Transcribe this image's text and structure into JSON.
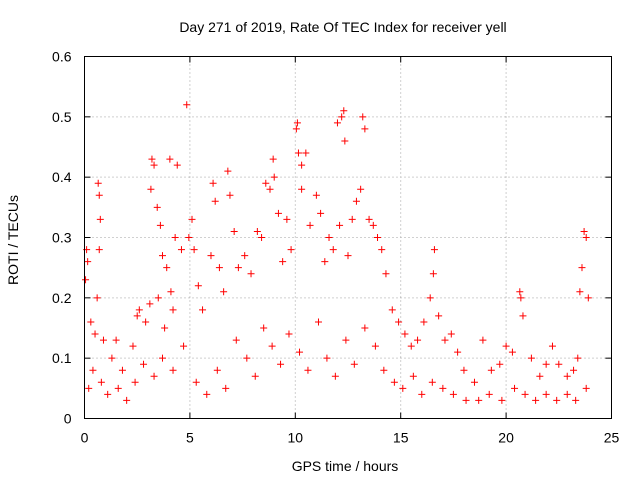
{
  "chart_data": {
    "type": "scatter",
    "title": "Day 271 of 2019, Rate Of TEC Index for receiver yell",
    "xlabel": "GPS time / hours",
    "ylabel": "ROTI / TECUs",
    "xlim": [
      0,
      25
    ],
    "ylim": [
      0,
      0.6
    ],
    "xticks": [
      0,
      5,
      10,
      15,
      20,
      25
    ],
    "yticks": [
      0,
      0.1,
      0.2,
      0.3,
      0.4,
      0.5,
      0.6
    ],
    "xtick_labels": [
      "0",
      "5",
      "10",
      "15",
      "20",
      "25"
    ],
    "ytick_labels": [
      "0",
      "0.1",
      "0.2",
      "0.3",
      "0.4",
      "0.5",
      "0.6"
    ],
    "grid": true,
    "marker": "+",
    "color": "#ff0000",
    "series": [
      {
        "name": "ROTI",
        "points": [
          [
            0.05,
            0.23
          ],
          [
            0.1,
            0.28
          ],
          [
            0.15,
            0.26
          ],
          [
            0.3,
            0.16
          ],
          [
            0.5,
            0.14
          ],
          [
            0.65,
            0.39
          ],
          [
            0.7,
            0.37
          ],
          [
            0.75,
            0.33
          ],
          [
            0.7,
            0.28
          ],
          [
            0.6,
            0.2
          ],
          [
            0.9,
            0.13
          ],
          [
            1.3,
            0.1
          ],
          [
            1.5,
            0.13
          ],
          [
            1.8,
            0.08
          ],
          [
            2.3,
            0.12
          ],
          [
            2.5,
            0.17
          ],
          [
            2.6,
            0.18
          ],
          [
            2.9,
            0.16
          ],
          [
            3.1,
            0.19
          ],
          [
            3.2,
            0.43
          ],
          [
            3.3,
            0.42
          ],
          [
            3.15,
            0.38
          ],
          [
            3.5,
            0.2
          ],
          [
            3.8,
            0.15
          ],
          [
            4.05,
            0.43
          ],
          [
            4.2,
            0.18
          ],
          [
            4.4,
            0.42
          ],
          [
            4.6,
            0.28
          ],
          [
            3.45,
            0.35
          ],
          [
            3.6,
            0.32
          ],
          [
            3.7,
            0.27
          ],
          [
            3.9,
            0.25
          ],
          [
            4.1,
            0.21
          ],
          [
            4.3,
            0.3
          ],
          [
            4.85,
            0.52
          ],
          [
            4.95,
            0.3
          ],
          [
            5.1,
            0.33
          ],
          [
            5.2,
            0.28
          ],
          [
            5.4,
            0.22
          ],
          [
            5.6,
            0.18
          ],
          [
            6.0,
            0.27
          ],
          [
            6.1,
            0.39
          ],
          [
            6.2,
            0.36
          ],
          [
            6.4,
            0.25
          ],
          [
            6.6,
            0.21
          ],
          [
            6.8,
            0.41
          ],
          [
            6.9,
            0.37
          ],
          [
            7.1,
            0.31
          ],
          [
            7.3,
            0.25
          ],
          [
            7.6,
            0.27
          ],
          [
            7.9,
            0.24
          ],
          [
            8.2,
            0.31
          ],
          [
            8.4,
            0.3
          ],
          [
            8.6,
            0.39
          ],
          [
            8.8,
            0.38
          ],
          [
            8.95,
            0.43
          ],
          [
            9.0,
            0.4
          ],
          [
            9.2,
            0.34
          ],
          [
            9.4,
            0.26
          ],
          [
            9.6,
            0.33
          ],
          [
            9.8,
            0.28
          ],
          [
            10.05,
            0.48
          ],
          [
            10.1,
            0.49
          ],
          [
            10.15,
            0.44
          ],
          [
            10.3,
            0.42
          ],
          [
            10.5,
            0.44
          ],
          [
            10.3,
            0.38
          ],
          [
            10.7,
            0.32
          ],
          [
            11.0,
            0.37
          ],
          [
            11.2,
            0.34
          ],
          [
            11.4,
            0.26
          ],
          [
            11.6,
            0.3
          ],
          [
            11.8,
            0.28
          ],
          [
            12.0,
            0.49
          ],
          [
            12.2,
            0.5
          ],
          [
            12.3,
            0.51
          ],
          [
            12.35,
            0.46
          ],
          [
            12.1,
            0.32
          ],
          [
            12.5,
            0.27
          ],
          [
            12.7,
            0.33
          ],
          [
            12.9,
            0.36
          ],
          [
            13.1,
            0.38
          ],
          [
            13.2,
            0.5
          ],
          [
            13.3,
            0.48
          ],
          [
            13.5,
            0.33
          ],
          [
            13.7,
            0.32
          ],
          [
            13.9,
            0.3
          ],
          [
            14.1,
            0.28
          ],
          [
            14.3,
            0.24
          ],
          [
            14.6,
            0.18
          ],
          [
            14.9,
            0.16
          ],
          [
            15.2,
            0.14
          ],
          [
            15.5,
            0.12
          ],
          [
            15.8,
            0.13
          ],
          [
            16.1,
            0.16
          ],
          [
            16.4,
            0.2
          ],
          [
            16.55,
            0.24
          ],
          [
            16.6,
            0.28
          ],
          [
            16.8,
            0.17
          ],
          [
            17.1,
            0.13
          ],
          [
            17.4,
            0.14
          ],
          [
            17.7,
            0.11
          ],
          [
            18.0,
            0.08
          ],
          [
            18.5,
            0.06
          ],
          [
            18.9,
            0.13
          ],
          [
            19.3,
            0.08
          ],
          [
            19.7,
            0.09
          ],
          [
            20.0,
            0.12
          ],
          [
            20.3,
            0.11
          ],
          [
            20.65,
            0.21
          ],
          [
            20.7,
            0.2
          ],
          [
            20.8,
            0.17
          ],
          [
            21.2,
            0.1
          ],
          [
            21.6,
            0.07
          ],
          [
            21.9,
            0.09
          ],
          [
            22.2,
            0.12
          ],
          [
            22.5,
            0.09
          ],
          [
            22.9,
            0.07
          ],
          [
            23.2,
            0.08
          ],
          [
            23.4,
            0.1
          ],
          [
            23.5,
            0.21
          ],
          [
            23.6,
            0.25
          ],
          [
            23.7,
            0.31
          ],
          [
            23.8,
            0.3
          ],
          [
            23.9,
            0.2
          ],
          [
            0.2,
            0.05
          ],
          [
            0.4,
            0.08
          ],
          [
            0.8,
            0.06
          ],
          [
            1.1,
            0.04
          ],
          [
            1.6,
            0.05
          ],
          [
            2.0,
            0.03
          ],
          [
            2.4,
            0.06
          ],
          [
            2.8,
            0.09
          ],
          [
            3.3,
            0.07
          ],
          [
            3.7,
            0.1
          ],
          [
            4.2,
            0.08
          ],
          [
            4.7,
            0.12
          ],
          [
            5.3,
            0.06
          ],
          [
            5.8,
            0.04
          ],
          [
            6.3,
            0.08
          ],
          [
            6.7,
            0.05
          ],
          [
            7.2,
            0.13
          ],
          [
            7.7,
            0.1
          ],
          [
            8.1,
            0.07
          ],
          [
            8.5,
            0.15
          ],
          [
            8.9,
            0.12
          ],
          [
            9.3,
            0.09
          ],
          [
            9.7,
            0.14
          ],
          [
            10.2,
            0.11
          ],
          [
            10.6,
            0.08
          ],
          [
            11.1,
            0.16
          ],
          [
            11.5,
            0.1
          ],
          [
            11.9,
            0.07
          ],
          [
            12.4,
            0.13
          ],
          [
            12.8,
            0.09
          ],
          [
            13.3,
            0.15
          ],
          [
            13.8,
            0.12
          ],
          [
            14.2,
            0.08
          ],
          [
            14.7,
            0.06
          ],
          [
            15.1,
            0.05
          ],
          [
            15.6,
            0.07
          ],
          [
            16.0,
            0.04
          ],
          [
            16.5,
            0.06
          ],
          [
            17.0,
            0.05
          ],
          [
            17.5,
            0.04
          ],
          [
            18.1,
            0.03
          ],
          [
            18.7,
            0.03
          ],
          [
            19.2,
            0.04
          ],
          [
            19.8,
            0.03
          ],
          [
            20.4,
            0.05
          ],
          [
            20.9,
            0.04
          ],
          [
            21.4,
            0.03
          ],
          [
            21.9,
            0.04
          ],
          [
            22.4,
            0.03
          ],
          [
            22.9,
            0.04
          ],
          [
            23.3,
            0.03
          ],
          [
            23.8,
            0.05
          ]
        ]
      }
    ]
  }
}
